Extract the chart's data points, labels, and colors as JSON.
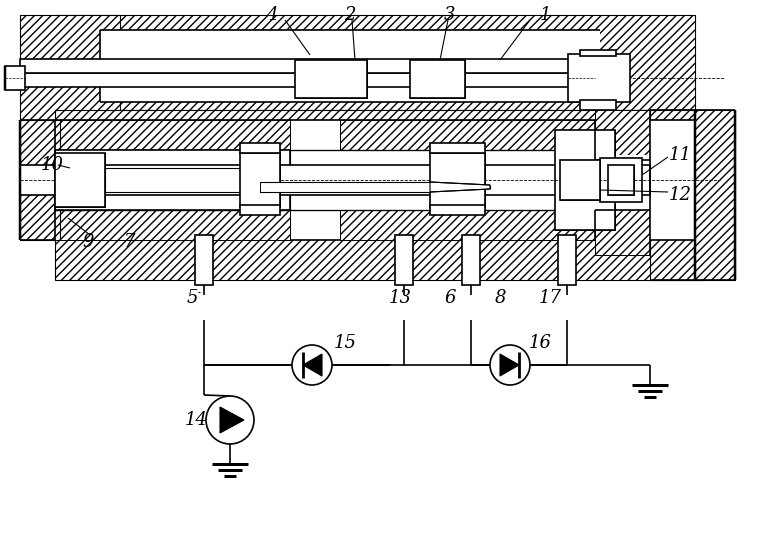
{
  "bg_color": "#ffffff",
  "line_color": "#000000",
  "linewidth": 1.2,
  "label_fontsize": 13,
  "labels": [
    "1",
    "2",
    "3",
    "4",
    "5",
    "6",
    "7",
    "8",
    "9",
    "10",
    "11",
    "12",
    "13",
    "14",
    "15",
    "16",
    "17"
  ]
}
